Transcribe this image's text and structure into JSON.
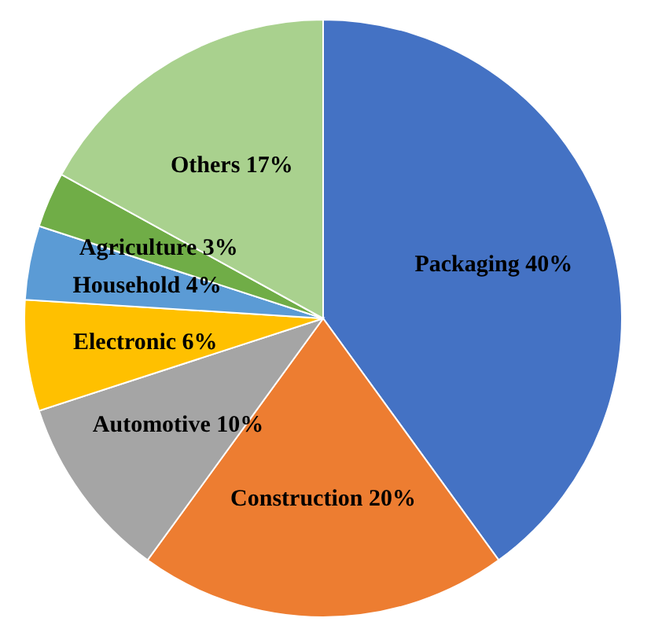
{
  "chart_data": {
    "type": "pie",
    "categories": [
      "Packaging",
      "Construction",
      "Automotive",
      "Electronic",
      "Household",
      "Agriculture",
      "Others"
    ],
    "values": [
      40,
      20,
      10,
      6,
      4,
      3,
      17
    ],
    "colors": [
      "#4472c4",
      "#ed7d31",
      "#a5a5a5",
      "#ffc000",
      "#5b9bd5",
      "#70ad47",
      "#a9d18e"
    ],
    "value_labels": [
      "40%",
      "20%",
      "10%",
      "6%",
      "4%",
      "3%",
      "17%"
    ],
    "legend": false
  }
}
